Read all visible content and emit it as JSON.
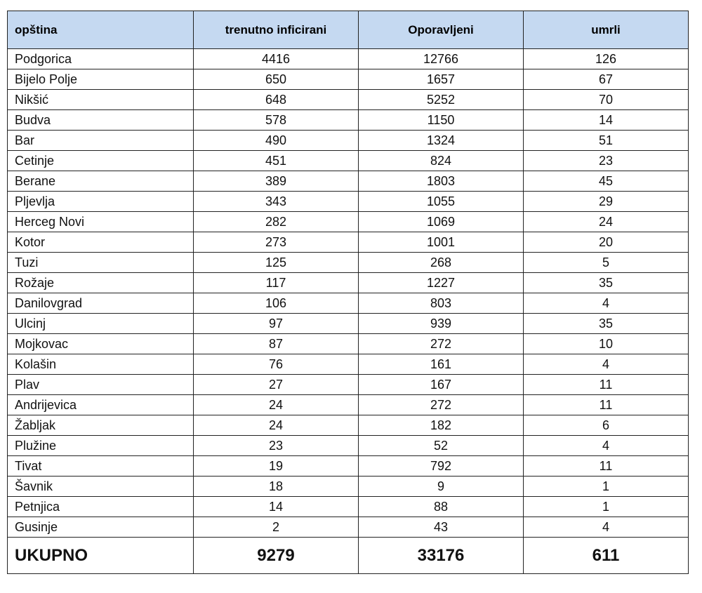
{
  "table": {
    "headers": [
      "opština",
      "trenutno inficirani",
      "Oporavljeni",
      "umrli"
    ],
    "rows": [
      [
        "Podgorica",
        4416,
        12766,
        126
      ],
      [
        "Bijelo Polje",
        650,
        1657,
        67
      ],
      [
        "Nikšić",
        648,
        5252,
        70
      ],
      [
        "Budva",
        578,
        1150,
        14
      ],
      [
        "Bar",
        490,
        1324,
        51
      ],
      [
        "Cetinje",
        451,
        824,
        23
      ],
      [
        "Berane",
        389,
        1803,
        45
      ],
      [
        "Pljevlja",
        343,
        1055,
        29
      ],
      [
        "Herceg Novi",
        282,
        1069,
        24
      ],
      [
        "Kotor",
        273,
        1001,
        20
      ],
      [
        "Tuzi",
        125,
        268,
        5
      ],
      [
        "Rožaje",
        117,
        1227,
        35
      ],
      [
        "Danilovgrad",
        106,
        803,
        4
      ],
      [
        "Ulcinj",
        97,
        939,
        35
      ],
      [
        "Mojkovac",
        87,
        272,
        10
      ],
      [
        "Kolašin",
        76,
        161,
        4
      ],
      [
        "Plav",
        27,
        167,
        11
      ],
      [
        "Andrijevica",
        24,
        272,
        11
      ],
      [
        "Žabljak",
        24,
        182,
        6
      ],
      [
        "Plužine",
        23,
        52,
        4
      ],
      [
        "Tivat",
        19,
        792,
        11
      ],
      [
        "Šavnik",
        18,
        9,
        1
      ],
      [
        "Petnjica",
        14,
        88,
        1
      ],
      [
        "Gusinje",
        2,
        43,
        4
      ]
    ],
    "total": [
      "UKUPNO",
      9279,
      33176,
      611
    ]
  }
}
